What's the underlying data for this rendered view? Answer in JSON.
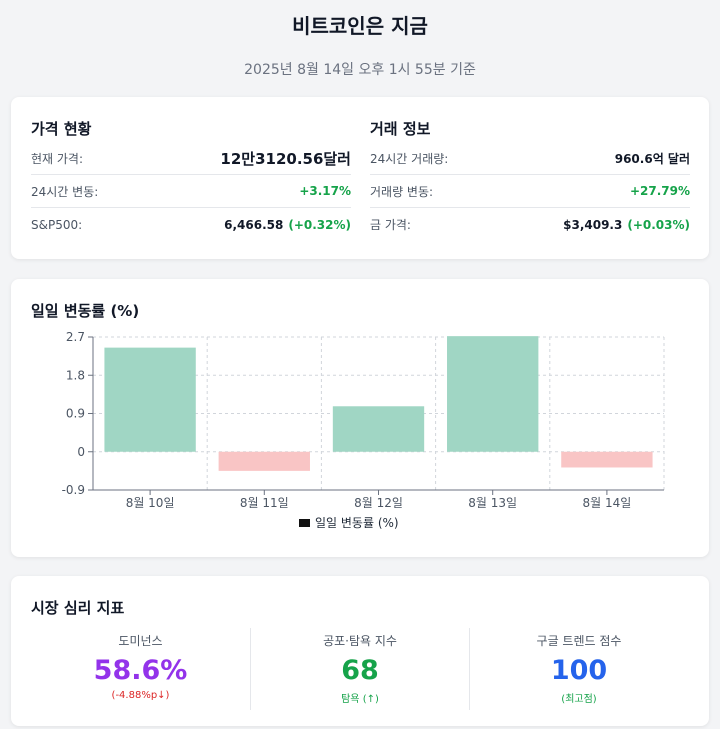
{
  "header": {
    "title": "비트코인은 지금",
    "subtitle": "2025년 8월 14일 오후 1시 55분 기준"
  },
  "price_status": {
    "title": "가격 현황",
    "rows": [
      {
        "label": "현재 가격:",
        "value": "12만3120.56달러",
        "change": ""
      },
      {
        "label": "24시간 변동:",
        "value": "",
        "change": "+3.17%"
      },
      {
        "label": "S&P500:",
        "value": "6,466.58",
        "change": "(+0.32%)"
      }
    ]
  },
  "trade_info": {
    "title": "거래 정보",
    "rows": [
      {
        "label": "24시간 거래량:",
        "value": "960.6억 달러",
        "change": ""
      },
      {
        "label": "거래량 변동:",
        "value": "",
        "change": "+27.79%"
      },
      {
        "label": "금 가격:",
        "value": "$3,409.3",
        "change": "(+0.03%)"
      }
    ]
  },
  "chart_section": {
    "title": "일일 변동률 (%)"
  },
  "chart_data": {
    "type": "bar",
    "categories": [
      "8월 10일",
      "8월 11일",
      "8월 12일",
      "8월 13일",
      "8월 14일"
    ],
    "series": [
      {
        "name": "일일 변동률 (%)",
        "values": [
          2.45,
          -0.45,
          1.07,
          2.72,
          -0.37
        ]
      }
    ],
    "ylim": [
      -0.9,
      2.7
    ],
    "yticks": [
      "2.7",
      "1.8",
      "0.9",
      "0",
      "-0.9"
    ],
    "grid": true,
    "legend": "bottom",
    "colors": {
      "positive": "#a0d6c4",
      "negative": "#f9c5c5"
    }
  },
  "sentiment": {
    "title": "시장 심리 지표",
    "items": [
      {
        "label": "도미넌스",
        "value": "58.6%",
        "sub": "(-4.88%p↓)",
        "color": "#9333ea",
        "sub_color": "#dc2626"
      },
      {
        "label": "공포·탐욕 지수",
        "value": "68",
        "sub": "탐욕 (↑)",
        "color": "#16a34a",
        "sub_color": "#16a34a"
      },
      {
        "label": "구글 트렌드 점수",
        "value": "100",
        "sub": "(최고점)",
        "color": "#2563eb",
        "sub_color": "#16a34a"
      }
    ]
  }
}
